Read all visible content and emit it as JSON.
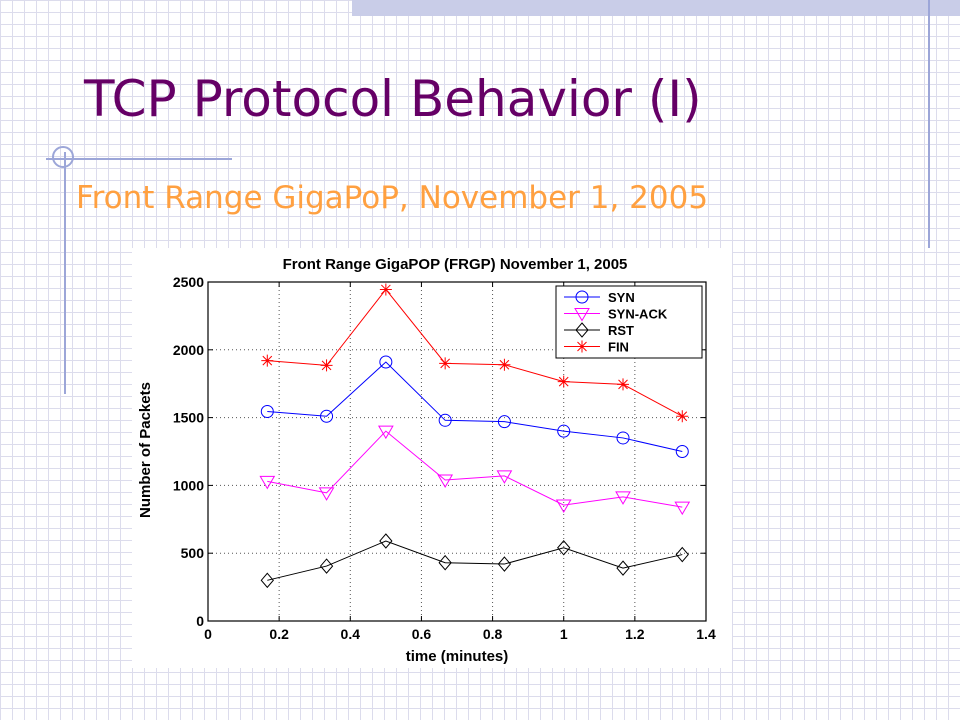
{
  "slide": {
    "title": "TCP Protocol Behavior (I)",
    "subtitle": "Front Range GigaPoP, November 1, 2005"
  },
  "chart_data": {
    "type": "line",
    "title": "Front Range GigaPOP (FRGP) November 1, 2005",
    "xlabel": "time (minutes)",
    "ylabel": "Number of Packets",
    "xlim": [
      0,
      1.4
    ],
    "ylim": [
      0,
      2500
    ],
    "xticks": [
      "0",
      "0.2",
      "0.4",
      "0.6",
      "0.8",
      "1",
      "1.2",
      "1.4"
    ],
    "yticks": [
      "0",
      "500",
      "1000",
      "1500",
      "2000",
      "2500"
    ],
    "grid": true,
    "legend_position": "top-right",
    "x": [
      0.1667,
      0.3333,
      0.5,
      0.6667,
      0.8333,
      1.0,
      1.1667,
      1.3333
    ],
    "series": [
      {
        "name": "SYN",
        "marker": "circle",
        "color": "#0000ff",
        "values": [
          1545,
          1510,
          1910,
          1480,
          1470,
          1400,
          1350,
          1250
        ]
      },
      {
        "name": "SYN-ACK",
        "marker": "triangle-down",
        "color": "#ff00ff",
        "values": [
          1030,
          945,
          1400,
          1040,
          1070,
          855,
          915,
          840
        ]
      },
      {
        "name": "RST",
        "marker": "diamond",
        "color": "#000000",
        "values": [
          300,
          405,
          590,
          430,
          420,
          540,
          390,
          490
        ]
      },
      {
        "name": "FIN",
        "marker": "star",
        "color": "#ff0000",
        "values": [
          1920,
          1885,
          2445,
          1900,
          1890,
          1765,
          1745,
          1510
        ]
      }
    ]
  }
}
